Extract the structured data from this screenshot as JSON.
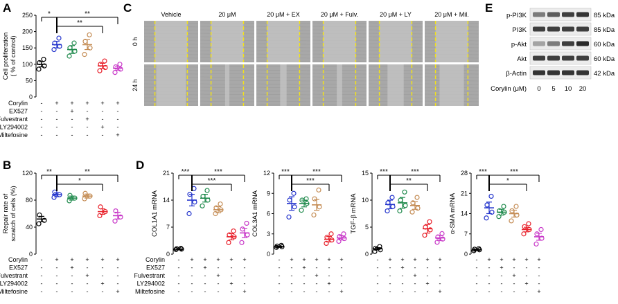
{
  "colors": {
    "black": "#000000",
    "blue": "#2233cc",
    "green": "#1f8a4c",
    "tan": "#c48c54",
    "red": "#e8202a",
    "magenta": "#c838c8",
    "gel_bg": "#ececec",
    "band": "#202020",
    "scratch_line": "#f2e21a",
    "micro_light": "#a8a8a8",
    "micro_dark": "#8e8e8e"
  },
  "panels": {
    "A": {
      "letter": "A"
    },
    "B": {
      "letter": "B"
    },
    "C": {
      "letter": "C"
    },
    "D": {
      "letter": "D"
    },
    "E": {
      "letter": "E"
    }
  },
  "treatments": {
    "labels": [
      "Corylin",
      "EX527",
      "Fulvestrant",
      "LY294002",
      "Miltefosine"
    ],
    "signs_6": [
      [
        "-",
        "+",
        "+",
        "+",
        "+",
        "+"
      ],
      [
        "-",
        "-",
        "+",
        "-",
        "-",
        "-"
      ],
      [
        "-",
        "-",
        "-",
        "+",
        "-",
        "-"
      ],
      [
        "-",
        "-",
        "-",
        "-",
        "+",
        "-"
      ],
      [
        "-",
        "-",
        "-",
        "-",
        "-",
        "+"
      ]
    ]
  },
  "chart_data": [
    {
      "id": "A",
      "type": "scatter",
      "ylabel": "Cell proliferation (% of control)",
      "ylabel_lines": [
        "Cell proliferation",
        "( % of control)"
      ],
      "ylim": [
        0,
        250
      ],
      "yticks": [
        "0",
        "50",
        "100",
        "150",
        "200",
        "250"
      ],
      "groups": [
        {
          "mean": 100,
          "sem": 8,
          "points": [
            85,
            95,
            105,
            115
          ]
        },
        {
          "mean": 160,
          "sem": 10,
          "points": [
            145,
            155,
            165,
            180
          ]
        },
        {
          "mean": 145,
          "sem": 12,
          "points": [
            125,
            140,
            150,
            165
          ]
        },
        {
          "mean": 160,
          "sem": 15,
          "points": [
            130,
            150,
            170,
            190
          ]
        },
        {
          "mean": 95,
          "sem": 8,
          "points": [
            80,
            90,
            100,
            110
          ]
        },
        {
          "mean": 88,
          "sem": 6,
          "points": [
            75,
            85,
            92,
            100
          ]
        }
      ],
      "sig": [
        {
          "label": "*",
          "from": 0,
          "to": 1
        },
        {
          "label": "**",
          "from": 1,
          "to": 5
        },
        {
          "label": "**",
          "from": 1,
          "to": 4
        }
      ]
    },
    {
      "id": "B",
      "type": "scatter",
      "ylabel": "Repair rate of scratch of cells (%)",
      "ylabel_lines": [
        "Repair rate of",
        "scratch of cells (%)"
      ],
      "ylim": [
        0,
        120
      ],
      "yticks": [
        "0",
        "40",
        "80",
        "120"
      ],
      "groups": [
        {
          "mean": 52,
          "sem": 4,
          "points": [
            45,
            50,
            58
          ]
        },
        {
          "mean": 88,
          "sem": 3,
          "points": [
            84,
            88,
            92
          ]
        },
        {
          "mean": 83,
          "sem": 3,
          "points": [
            79,
            83,
            87
          ]
        },
        {
          "mean": 86,
          "sem": 3,
          "points": [
            82,
            86,
            90
          ]
        },
        {
          "mean": 63,
          "sem": 4,
          "points": [
            57,
            63,
            70
          ]
        },
        {
          "mean": 57,
          "sem": 5,
          "points": [
            49,
            55,
            64
          ]
        }
      ],
      "sig": [
        {
          "label": "**",
          "from": 0,
          "to": 1
        },
        {
          "label": "**",
          "from": 1,
          "to": 5
        },
        {
          "label": "*",
          "from": 1,
          "to": 4
        }
      ]
    },
    {
      "id": "D1",
      "type": "scatter",
      "ylabel": "COL1A1 mRNA",
      "ylim": [
        0,
        21
      ],
      "yticks": [
        "0",
        "7",
        "14",
        "21"
      ],
      "groups": [
        {
          "mean": 1.3,
          "sem": 0.1,
          "points": [
            1.2,
            1.3,
            1.4,
            1.5
          ]
        },
        {
          "mean": 14,
          "sem": 1.5,
          "points": [
            10.5,
            13.5,
            15.5,
            17
          ]
        },
        {
          "mean": 14.5,
          "sem": 1,
          "points": [
            12.5,
            14,
            15,
            16.5
          ]
        },
        {
          "mean": 11.5,
          "sem": 0.8,
          "points": [
            10.5,
            11.5,
            12,
            13
          ]
        },
        {
          "mean": 4.5,
          "sem": 0.8,
          "points": [
            3,
            4.5,
            5,
            6
          ]
        },
        {
          "mean": 5.5,
          "sem": 1.2,
          "points": [
            3,
            5,
            6.5,
            8
          ]
        }
      ],
      "sig": [
        {
          "label": "***",
          "from": 0,
          "to": 1
        },
        {
          "label": "***",
          "from": 1,
          "to": 5
        },
        {
          "label": "***",
          "from": 1,
          "to": 4
        }
      ]
    },
    {
      "id": "D2",
      "type": "scatter",
      "ylabel": "COL3A1 mRNA",
      "ylim": [
        0,
        12
      ],
      "yticks": [
        "0",
        "3",
        "6",
        "9",
        "12"
      ],
      "groups": [
        {
          "mean": 1.1,
          "sem": 0.1,
          "points": [
            1.0,
            1.1,
            1.2,
            1.3
          ]
        },
        {
          "mean": 7.5,
          "sem": 1,
          "points": [
            5.5,
            7,
            8,
            9
          ]
        },
        {
          "mean": 7.5,
          "sem": 0.5,
          "points": [
            6.5,
            7.5,
            8,
            8.2
          ]
        },
        {
          "mean": 7.3,
          "sem": 0.8,
          "points": [
            5.8,
            7,
            8.2,
            9.5
          ]
        },
        {
          "mean": 2.2,
          "sem": 0.4,
          "points": [
            1.6,
            2.1,
            2.5,
            3
          ]
        },
        {
          "mean": 2.4,
          "sem": 0.3,
          "points": [
            1.9,
            2.3,
            2.6,
            3
          ]
        }
      ],
      "sig": [
        {
          "label": "***",
          "from": 0,
          "to": 1
        },
        {
          "label": "***",
          "from": 1,
          "to": 5
        },
        {
          "label": "***",
          "from": 1,
          "to": 4
        }
      ]
    },
    {
      "id": "D3",
      "type": "scatter",
      "ylabel": "TGF-β mRNA",
      "ylim": [
        0,
        15
      ],
      "yticks": [
        "0",
        "5",
        "10",
        "15"
      ],
      "groups": [
        {
          "mean": 1,
          "sem": 0.2,
          "points": [
            0.5,
            0.8,
            1.1,
            1.4
          ]
        },
        {
          "mean": 9.2,
          "sem": 0.8,
          "points": [
            8,
            8.8,
            9.5,
            10.5
          ]
        },
        {
          "mean": 9.5,
          "sem": 1,
          "points": [
            8,
            9,
            10,
            11.5
          ]
        },
        {
          "mean": 9,
          "sem": 0.7,
          "points": [
            7.8,
            8.5,
            9.5,
            10.5
          ]
        },
        {
          "mean": 4.7,
          "sem": 0.8,
          "points": [
            3.5,
            4.5,
            5,
            6
          ]
        },
        {
          "mean": 3,
          "sem": 0.5,
          "points": [
            2.2,
            2.8,
            3.2,
            3.8
          ]
        }
      ],
      "sig": [
        {
          "label": "***",
          "from": 0,
          "to": 1
        },
        {
          "label": "***",
          "from": 1,
          "to": 5
        },
        {
          "label": "**",
          "from": 1,
          "to": 4
        }
      ]
    },
    {
      "id": "D4",
      "type": "scatter",
      "ylabel": "α-SMA mRNA",
      "ylim": [
        0,
        28
      ],
      "yticks": [
        "0",
        "7",
        "14",
        "21",
        "28"
      ],
      "groups": [
        {
          "mean": 1.5,
          "sem": 0.2,
          "points": [
            1.2,
            1.5,
            1.7,
            1.9
          ]
        },
        {
          "mean": 16,
          "sem": 2,
          "points": [
            12.5,
            14.5,
            17,
            20
          ]
        },
        {
          "mean": 14.5,
          "sem": 1,
          "points": [
            13,
            14.5,
            15,
            16.5
          ]
        },
        {
          "mean": 14,
          "sem": 1.2,
          "points": [
            11.5,
            13.5,
            15,
            16.5
          ]
        },
        {
          "mean": 8.5,
          "sem": 0.8,
          "points": [
            7,
            8.5,
            9.5,
            10.5
          ]
        },
        {
          "mean": 6,
          "sem": 1.2,
          "points": [
            3.5,
            5.5,
            7,
            8.5
          ]
        }
      ],
      "sig": [
        {
          "label": "***",
          "from": 0,
          "to": 1
        },
        {
          "label": "***",
          "from": 1,
          "to": 5
        },
        {
          "label": "*",
          "from": 1,
          "to": 4
        }
      ]
    }
  ],
  "scratch": {
    "columns": [
      "Vehicle",
      "20 μM",
      "20 μM + EX",
      "20 μM + Fulv.",
      "20 μM + LY",
      "20 μM + Mil."
    ],
    "rows": [
      "0 h",
      "24 h"
    ],
    "remaining_gap_fraction_24h": [
      0.55,
      0.08,
      0.12,
      0.1,
      0.3,
      0.45
    ]
  },
  "western": {
    "proteins": [
      "p-PI3K",
      "PI3K",
      "p-Akt",
      "Akt",
      "β-Actin"
    ],
    "sizes": [
      "85 kDa",
      "85 kDa",
      "60 kDa",
      "60 kDa",
      "42 kDa"
    ],
    "band_intensity": [
      [
        0.55,
        0.7,
        0.85,
        0.9
      ],
      [
        0.85,
        0.85,
        0.85,
        0.85
      ],
      [
        0.35,
        0.55,
        0.85,
        0.95
      ],
      [
        0.85,
        0.85,
        0.85,
        0.85
      ],
      [
        0.9,
        0.9,
        0.9,
        0.9
      ]
    ],
    "dose_label": "Corylin (μM)",
    "doses": [
      "0",
      "5",
      "10",
      "20"
    ]
  }
}
